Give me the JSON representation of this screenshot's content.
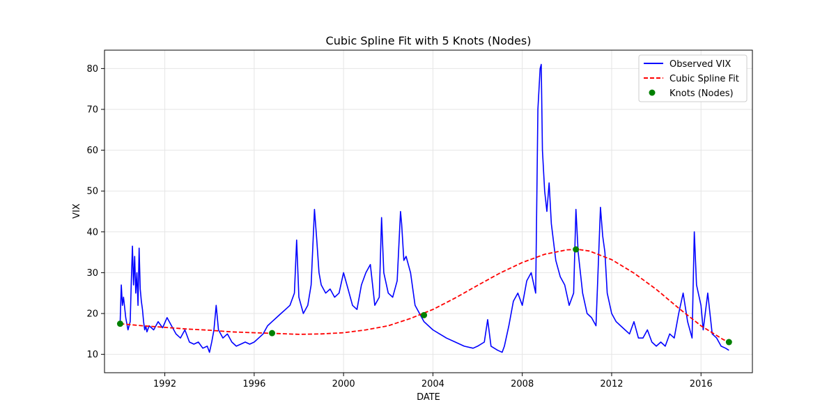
{
  "chart_data": {
    "type": "line",
    "title": "Cubic Spline Fit with 5 Knots (Nodes)",
    "xlabel": "DATE",
    "ylabel": "VIX",
    "x_unit": "year",
    "xlim": [
      1989.3,
      2018.3
    ],
    "ylim": [
      5.5,
      84.5
    ],
    "xticks": [
      1992,
      1996,
      2000,
      2004,
      2008,
      2012,
      2016
    ],
    "xtick_labels": [
      "1992",
      "1996",
      "2000",
      "2004",
      "2008",
      "2012",
      "2016"
    ],
    "yticks": [
      10,
      20,
      30,
      40,
      50,
      60,
      70,
      80
    ],
    "ytick_labels": [
      "10",
      "20",
      "30",
      "40",
      "50",
      "60",
      "70",
      "80"
    ],
    "grid": true,
    "legend_position": "upper right",
    "series": [
      {
        "name": "Observed VIX",
        "style": "solid line",
        "color": "#0000ff",
        "x": [
          1990.0,
          1990.05,
          1990.1,
          1990.15,
          1990.25,
          1990.35,
          1990.45,
          1990.5,
          1990.55,
          1990.6,
          1990.65,
          1990.7,
          1990.75,
          1990.8,
          1990.85,
          1990.9,
          1990.95,
          1991.0,
          1991.05,
          1991.1,
          1991.15,
          1991.2,
          1991.3,
          1991.5,
          1991.7,
          1991.9,
          1992.1,
          1992.3,
          1992.5,
          1992.7,
          1992.9,
          1993.1,
          1993.3,
          1993.5,
          1993.7,
          1993.9,
          1994.0,
          1994.1,
          1994.2,
          1994.3,
          1994.4,
          1994.6,
          1994.8,
          1995.0,
          1995.2,
          1995.4,
          1995.6,
          1995.8,
          1996.0,
          1996.2,
          1996.4,
          1996.6,
          1996.8,
          1997.0,
          1997.2,
          1997.4,
          1997.6,
          1997.8,
          1997.9,
          1998.0,
          1998.2,
          1998.4,
          1998.55,
          1998.7,
          1998.8,
          1998.9,
          1999.0,
          1999.2,
          1999.4,
          1999.6,
          1999.8,
          2000.0,
          2000.2,
          2000.4,
          2000.6,
          2000.8,
          2001.0,
          2001.2,
          2001.4,
          2001.6,
          2001.7,
          2001.8,
          2002.0,
          2002.2,
          2002.4,
          2002.55,
          2002.6,
          2002.7,
          2002.8,
          2003.0,
          2003.2,
          2003.4,
          2003.6,
          2003.8,
          2004.0,
          2004.3,
          2004.6,
          2005.0,
          2005.4,
          2005.8,
          2006.0,
          2006.3,
          2006.45,
          2006.6,
          2006.9,
          2007.1,
          2007.2,
          2007.4,
          2007.6,
          2007.8,
          2008.0,
          2008.2,
          2008.4,
          2008.6,
          2008.7,
          2008.8,
          2008.85,
          2008.9,
          2009.0,
          2009.1,
          2009.2,
          2009.3,
          2009.5,
          2009.7,
          2009.9,
          2010.1,
          2010.3,
          2010.4,
          2010.5,
          2010.7,
          2010.9,
          2011.1,
          2011.3,
          2011.5,
          2011.6,
          2011.7,
          2011.8,
          2012.0,
          2012.2,
          2012.4,
          2012.6,
          2012.8,
          2013.0,
          2013.2,
          2013.4,
          2013.6,
          2013.8,
          2014.0,
          2014.2,
          2014.4,
          2014.6,
          2014.8,
          2015.0,
          2015.2,
          2015.4,
          2015.6,
          2015.7,
          2015.8,
          2016.0,
          2016.1,
          2016.3,
          2016.5,
          2016.7,
          2016.9,
          2017.1,
          2017.25
        ],
        "y": [
          17.5,
          27.0,
          22.0,
          24.0,
          19.0,
          16.0,
          18.0,
          28.0,
          36.5,
          27.0,
          34.0,
          25.0,
          30.0,
          22.0,
          36.0,
          26.0,
          23.0,
          21.0,
          18.0,
          16.0,
          17.0,
          15.5,
          17.0,
          16.0,
          18.0,
          16.5,
          19.0,
          17.0,
          15.0,
          14.0,
          16.0,
          13.0,
          12.5,
          13.0,
          11.5,
          12.0,
          10.5,
          13.0,
          16.0,
          22.0,
          16.0,
          14.0,
          15.0,
          13.0,
          12.0,
          12.5,
          13.0,
          12.5,
          13.0,
          14.0,
          15.0,
          17.0,
          18.0,
          19.0,
          20.0,
          21.0,
          22.0,
          25.0,
          38.0,
          24.0,
          20.0,
          22.0,
          27.0,
          45.5,
          38.0,
          30.0,
          27.0,
          25.0,
          26.0,
          24.0,
          25.0,
          30.0,
          26.0,
          22.0,
          21.0,
          27.0,
          30.0,
          32.0,
          22.0,
          24.0,
          43.5,
          30.0,
          25.0,
          24.0,
          28.0,
          45.0,
          42.0,
          33.0,
          34.0,
          30.0,
          22.0,
          20.0,
          18.0,
          17.0,
          16.0,
          15.0,
          14.0,
          13.0,
          12.0,
          11.5,
          12.0,
          13.0,
          18.5,
          12.0,
          11.0,
          10.5,
          12.0,
          17.0,
          23.0,
          25.0,
          22.0,
          28.0,
          30.0,
          25.0,
          70.0,
          80.0,
          81.0,
          60.0,
          50.0,
          45.0,
          52.0,
          42.0,
          33.0,
          29.0,
          27.0,
          22.0,
          25.0,
          45.5,
          35.0,
          25.0,
          20.0,
          19.0,
          17.0,
          46.0,
          39.0,
          35.0,
          25.0,
          20.0,
          18.0,
          17.0,
          16.0,
          15.0,
          18.0,
          14.0,
          14.0,
          16.0,
          13.0,
          12.0,
          13.0,
          12.0,
          15.0,
          14.0,
          20.0,
          25.0,
          18.0,
          14.0,
          40.0,
          27.0,
          22.0,
          16.0,
          25.0,
          15.0,
          14.0,
          12.0,
          11.5,
          11.0
        ]
      },
      {
        "name": "Cubic Spline Fit",
        "style": "dashed line",
        "color": "#ff0000",
        "x": [
          1990.0,
          1991.0,
          1992.0,
          1993.0,
          1994.0,
          1995.0,
          1996.0,
          1997.0,
          1998.0,
          1999.0,
          2000.0,
          2001.0,
          2002.0,
          2003.0,
          2004.0,
          2005.0,
          2006.0,
          2007.0,
          2008.0,
          2009.0,
          2010.0,
          2010.5,
          2011.0,
          2012.0,
          2013.0,
          2014.0,
          2015.0,
          2016.0,
          2017.0,
          2017.25
        ],
        "y": [
          17.5,
          17.0,
          16.6,
          16.2,
          15.9,
          15.5,
          15.3,
          15.1,
          14.9,
          15.0,
          15.3,
          16.0,
          17.0,
          18.8,
          21.0,
          23.8,
          26.9,
          29.9,
          32.5,
          34.5,
          35.6,
          35.7,
          35.3,
          33.2,
          29.9,
          25.9,
          21.3,
          17.0,
          13.6,
          13.0
        ]
      },
      {
        "name": "Knots (Nodes)",
        "style": "markers",
        "color": "#008000",
        "x": [
          1990.0,
          1996.8,
          2003.6,
          2010.4,
          2017.25
        ],
        "y": [
          17.5,
          15.2,
          19.6,
          35.7,
          13.0
        ]
      }
    ]
  }
}
